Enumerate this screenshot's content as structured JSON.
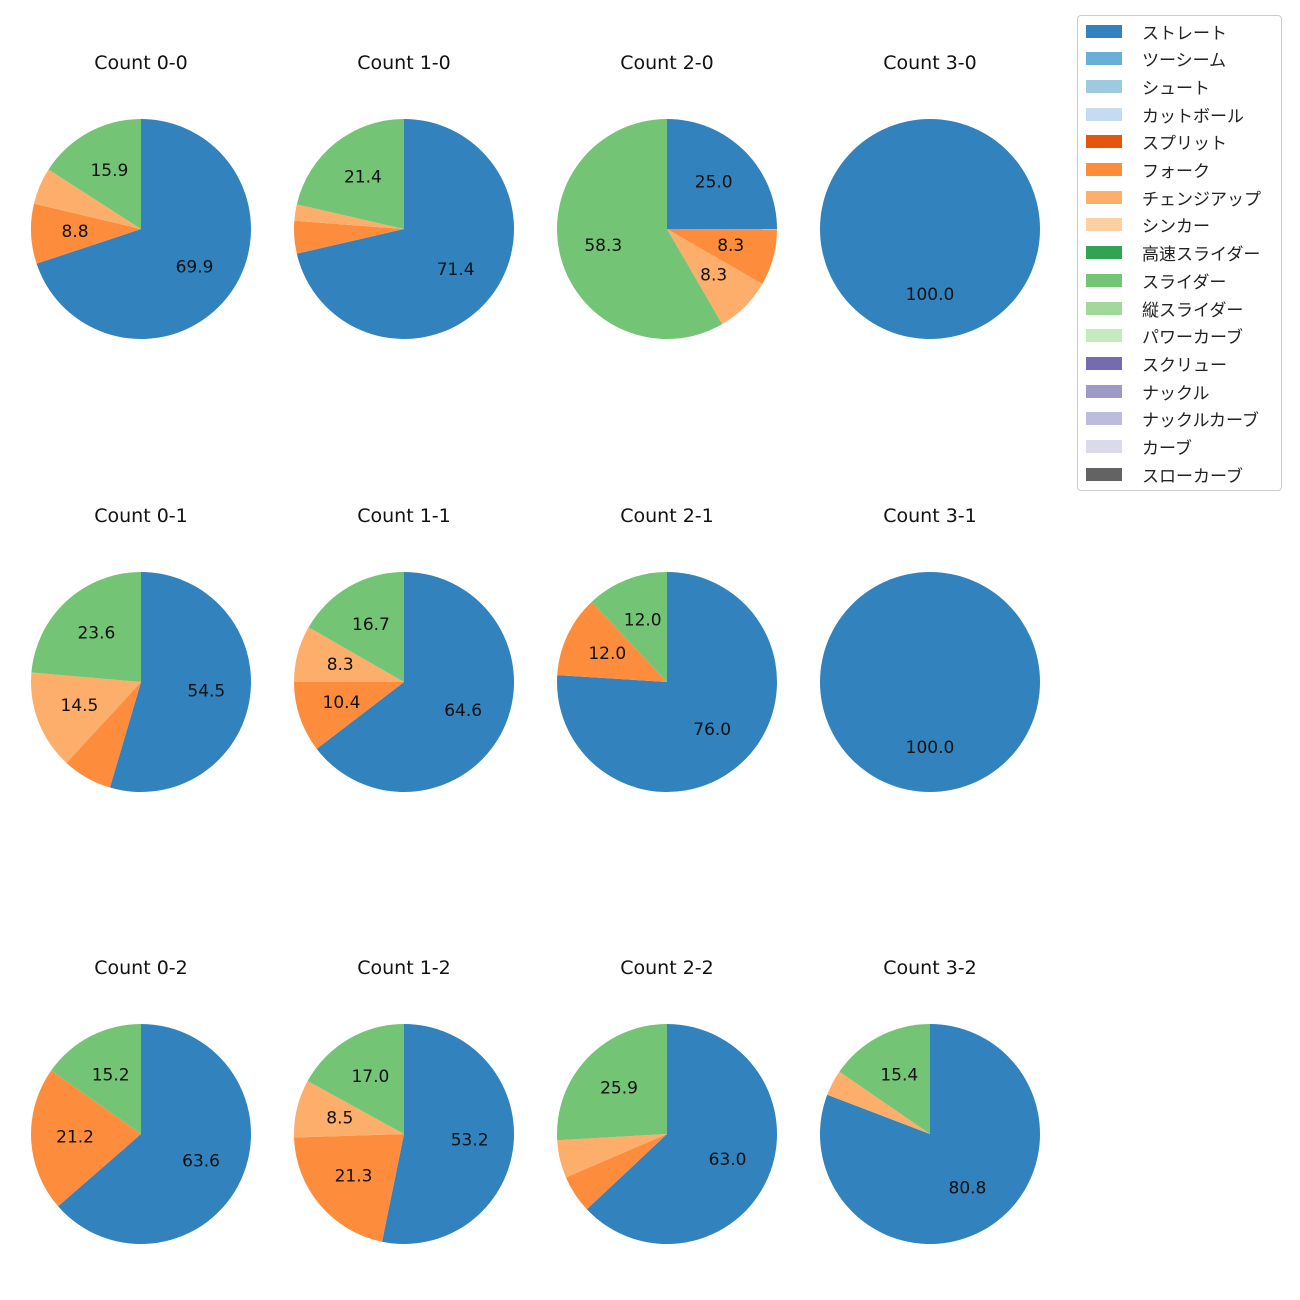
{
  "chart_data": {
    "type": "pie",
    "legend": {
      "placement": "top-right",
      "entries": [
        {
          "label": "ストレート",
          "color": "#3182bd"
        },
        {
          "label": "ツーシーム",
          "color": "#6baed6"
        },
        {
          "label": "シュート",
          "color": "#9ecae1"
        },
        {
          "label": "カットボール",
          "color": "#c6dbef"
        },
        {
          "label": "スプリット",
          "color": "#e6550d"
        },
        {
          "label": "フォーク",
          "color": "#fd8d3c"
        },
        {
          "label": "チェンジアップ",
          "color": "#fdae6b"
        },
        {
          "label": "シンカー",
          "color": "#fdd0a2"
        },
        {
          "label": "高速スライダー",
          "color": "#31a354"
        },
        {
          "label": "スライダー",
          "color": "#74c476"
        },
        {
          "label": "縦スライダー",
          "color": "#a1d99b"
        },
        {
          "label": "パワーカーブ",
          "color": "#c7e9c0"
        },
        {
          "label": "スクリュー",
          "color": "#756bb1"
        },
        {
          "label": "ナックル",
          "color": "#9e9ac8"
        },
        {
          "label": "ナックルカーブ",
          "color": "#bcbddc"
        },
        {
          "label": "カーブ",
          "color": "#dadaeb"
        },
        {
          "label": "スローカーブ",
          "color": "#636363"
        }
      ]
    },
    "panels": [
      {
        "title": "Count 0-0",
        "slices": [
          {
            "pitch": "ストレート",
            "value": 69.9,
            "label": "69.9"
          },
          {
            "pitch": "フォーク",
            "value": 8.8,
            "label": "8.8"
          },
          {
            "pitch": "チェンジアップ",
            "value": 5.4,
            "label": ""
          },
          {
            "pitch": "スライダー",
            "value": 15.9,
            "label": "15.9"
          }
        ]
      },
      {
        "title": "Count 1-0",
        "slices": [
          {
            "pitch": "ストレート",
            "value": 71.4,
            "label": "71.4"
          },
          {
            "pitch": "フォーク",
            "value": 4.8,
            "label": ""
          },
          {
            "pitch": "チェンジアップ",
            "value": 2.4,
            "label": ""
          },
          {
            "pitch": "スライダー",
            "value": 21.4,
            "label": "21.4"
          }
        ]
      },
      {
        "title": "Count 2-0",
        "slices": [
          {
            "pitch": "ストレート",
            "value": 25.0,
            "label": "25.0"
          },
          {
            "pitch": "フォーク",
            "value": 8.3,
            "label": "8.3"
          },
          {
            "pitch": "チェンジアップ",
            "value": 8.3,
            "label": "8.3"
          },
          {
            "pitch": "スライダー",
            "value": 58.3,
            "label": "58.3"
          }
        ]
      },
      {
        "title": "Count 3-0",
        "slices": [
          {
            "pitch": "ストレート",
            "value": 100.0,
            "label": "100.0"
          }
        ]
      },
      {
        "title": "Count 0-1",
        "slices": [
          {
            "pitch": "ストレート",
            "value": 54.5,
            "label": "54.5"
          },
          {
            "pitch": "フォーク",
            "value": 7.3,
            "label": ""
          },
          {
            "pitch": "チェンジアップ",
            "value": 14.5,
            "label": "14.5"
          },
          {
            "pitch": "スライダー",
            "value": 23.6,
            "label": "23.6"
          }
        ]
      },
      {
        "title": "Count 1-1",
        "slices": [
          {
            "pitch": "ストレート",
            "value": 64.6,
            "label": "64.6"
          },
          {
            "pitch": "フォーク",
            "value": 10.4,
            "label": "10.4"
          },
          {
            "pitch": "チェンジアップ",
            "value": 8.3,
            "label": "8.3"
          },
          {
            "pitch": "スライダー",
            "value": 16.7,
            "label": "16.7"
          }
        ]
      },
      {
        "title": "Count 2-1",
        "slices": [
          {
            "pitch": "ストレート",
            "value": 76.0,
            "label": "76.0"
          },
          {
            "pitch": "フォーク",
            "value": 12.0,
            "label": "12.0"
          },
          {
            "pitch": "スライダー",
            "value": 12.0,
            "label": "12.0"
          }
        ]
      },
      {
        "title": "Count 3-1",
        "slices": [
          {
            "pitch": "ストレート",
            "value": 100.0,
            "label": "100.0"
          }
        ]
      },
      {
        "title": "Count 0-2",
        "slices": [
          {
            "pitch": "ストレート",
            "value": 63.6,
            "label": "63.6"
          },
          {
            "pitch": "フォーク",
            "value": 21.2,
            "label": "21.2"
          },
          {
            "pitch": "スライダー",
            "value": 15.2,
            "label": "15.2"
          }
        ]
      },
      {
        "title": "Count 1-2",
        "slices": [
          {
            "pitch": "ストレート",
            "value": 53.2,
            "label": "53.2"
          },
          {
            "pitch": "フォーク",
            "value": 21.3,
            "label": "21.3"
          },
          {
            "pitch": "チェンジアップ",
            "value": 8.5,
            "label": "8.5"
          },
          {
            "pitch": "スライダー",
            "value": 17.0,
            "label": "17.0"
          }
        ]
      },
      {
        "title": "Count 2-2",
        "slices": [
          {
            "pitch": "ストレート",
            "value": 63.0,
            "label": "63.0"
          },
          {
            "pitch": "フォーク",
            "value": 5.55,
            "label": ""
          },
          {
            "pitch": "チェンジアップ",
            "value": 5.55,
            "label": ""
          },
          {
            "pitch": "スライダー",
            "value": 25.9,
            "label": "25.9"
          }
        ]
      },
      {
        "title": "Count 3-2",
        "slices": [
          {
            "pitch": "ストレート",
            "value": 80.8,
            "label": "80.8"
          },
          {
            "pitch": "チェンジアップ",
            "value": 3.8,
            "label": ""
          },
          {
            "pitch": "スライダー",
            "value": 15.4,
            "label": "15.4"
          }
        ]
      }
    ]
  }
}
